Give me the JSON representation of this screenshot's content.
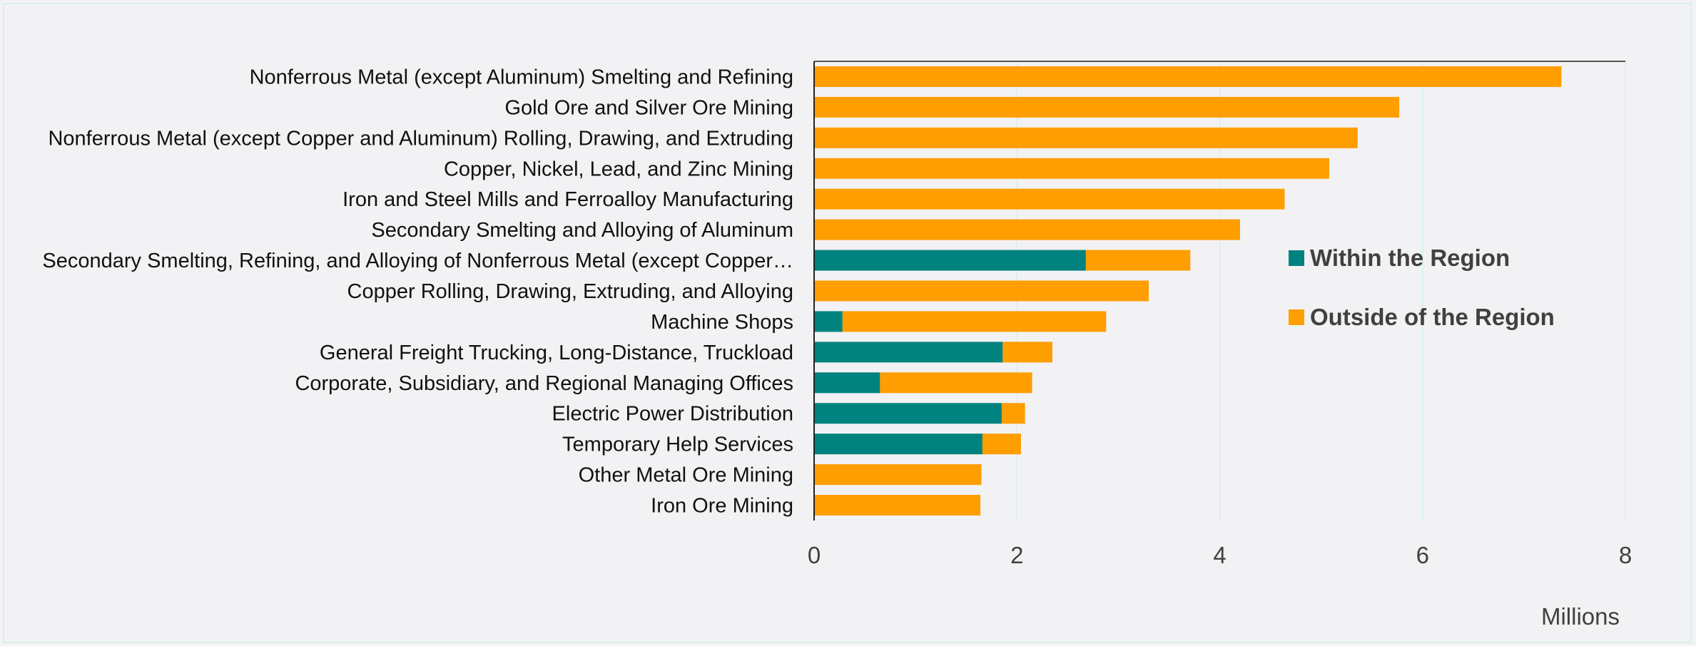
{
  "chart_data": {
    "type": "bar",
    "orientation": "horizontal",
    "stacked": true,
    "categories": [
      "Nonferrous Metal (except Aluminum) Smelting and Refining",
      "Gold Ore and Silver Ore Mining",
      "Nonferrous Metal (except Copper and Aluminum) Rolling, Drawing, and Extruding",
      "Copper, Nickel, Lead, and Zinc Mining",
      "Iron and Steel Mills and Ferroalloy Manufacturing",
      "Secondary Smelting and Alloying of Aluminum",
      "Secondary Smelting, Refining, and Alloying of Nonferrous Metal (except Copper…",
      "Copper Rolling, Drawing, Extruding, and Alloying",
      "Machine Shops",
      "General Freight Trucking, Long-Distance, Truckload",
      "Corporate, Subsidiary, and Regional Managing Offices",
      "Electric Power Distribution",
      "Temporary Help Services",
      "Other Metal Ore Mining",
      "Iron Ore Mining"
    ],
    "series": [
      {
        "name": "Within the Region",
        "color": "#00827f",
        "values": [
          0,
          0,
          0,
          0,
          0,
          0,
          2.68,
          0,
          0.28,
          1.86,
          0.65,
          1.85,
          1.66,
          0,
          0
        ]
      },
      {
        "name": "Outside of the Region",
        "color": "#ff9e00",
        "values": [
          7.37,
          5.77,
          5.36,
          5.08,
          4.64,
          4.2,
          1.03,
          3.3,
          2.6,
          0.49,
          1.5,
          0.23,
          0.38,
          1.65,
          1.64
        ]
      }
    ],
    "xlim": [
      0,
      8
    ],
    "xticks": [
      "0",
      "2",
      "4",
      "6",
      "8"
    ],
    "x_unit_label": "Millions",
    "grid": "vertical",
    "legend_position": "right"
  }
}
